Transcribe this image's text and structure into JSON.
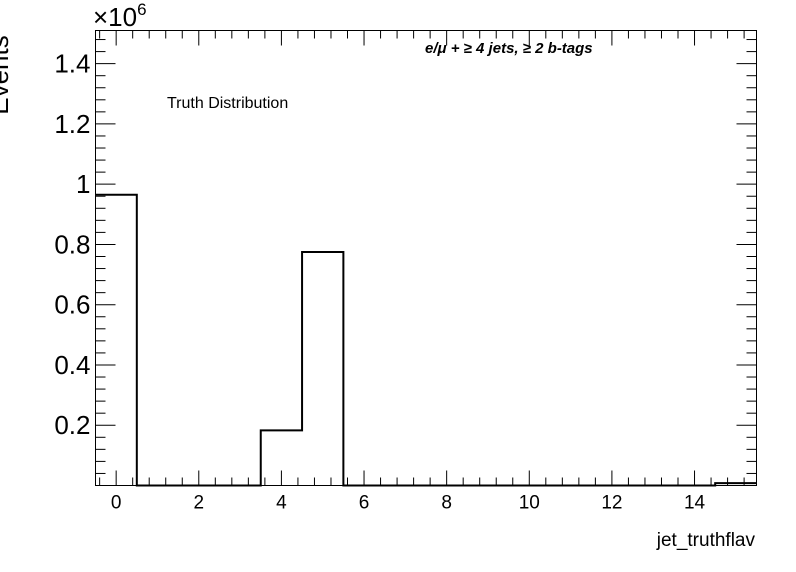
{
  "chart_data": {
    "type": "bar",
    "histogram": true,
    "xlabel": "jet_truthflav",
    "ylabel": "Events",
    "y_multiplier": "×10",
    "y_multiplier_exp": "6",
    "xlim": [
      -0.5,
      15.5
    ],
    "ylim": [
      0,
      1.51
    ],
    "x_ticks": [
      0,
      2,
      4,
      6,
      8,
      10,
      12,
      14
    ],
    "x_tick_labels": [
      "0",
      "2",
      "4",
      "6",
      "8",
      "10",
      "12",
      "14"
    ],
    "y_ticks": [
      0.2,
      0.4,
      0.6,
      0.8,
      1.0,
      1.2,
      1.4
    ],
    "y_tick_labels": [
      "0.2",
      "0.4",
      "0.6",
      "0.8",
      "1",
      "1.2",
      "1.4"
    ],
    "bins": [
      {
        "low": -0.5,
        "high": 0.5,
        "value": 0.965
      },
      {
        "low": 0.5,
        "high": 1.5,
        "value": 0
      },
      {
        "low": 1.5,
        "high": 2.5,
        "value": 0
      },
      {
        "low": 2.5,
        "high": 3.5,
        "value": 0
      },
      {
        "low": 3.5,
        "high": 4.5,
        "value": 0.183
      },
      {
        "low": 4.5,
        "high": 5.5,
        "value": 0.775
      },
      {
        "low": 5.5,
        "high": 6.5,
        "value": 0
      },
      {
        "low": 6.5,
        "high": 7.5,
        "value": 0
      },
      {
        "low": 7.5,
        "high": 8.5,
        "value": 0
      },
      {
        "low": 8.5,
        "high": 9.5,
        "value": 0
      },
      {
        "low": 9.5,
        "high": 10.5,
        "value": 0
      },
      {
        "low": 10.5,
        "high": 11.5,
        "value": 0
      },
      {
        "low": 11.5,
        "high": 12.5,
        "value": 0
      },
      {
        "low": 12.5,
        "high": 13.5,
        "value": 0
      },
      {
        "low": 13.5,
        "high": 14.5,
        "value": 0
      },
      {
        "low": 14.5,
        "high": 15.5,
        "value": 0.008
      }
    ],
    "annotations": {
      "selection": "e/μ + ≥ 4 jets, ≥ 2 b-tags",
      "legend": "Truth Distribution"
    },
    "grid": false
  }
}
